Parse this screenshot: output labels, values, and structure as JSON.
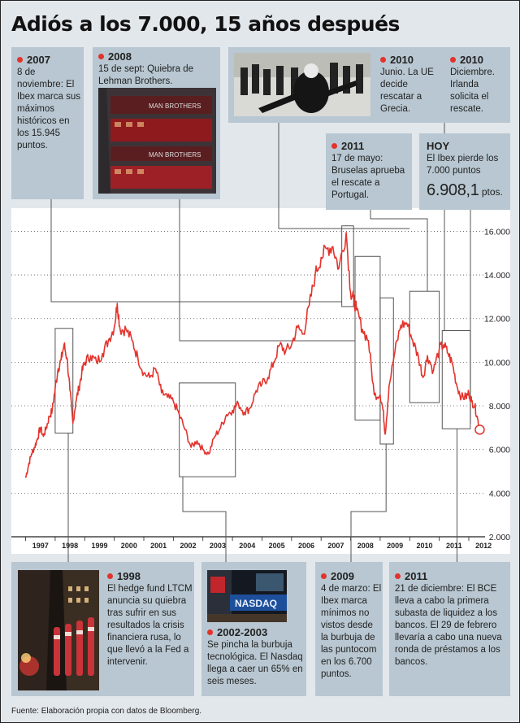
{
  "title": "Adiós a los 7.000, 15 años después",
  "source": "Fuente: Elaboración propia con datos de Bloomberg.",
  "events": {
    "e2007": {
      "year": "2007",
      "text": "8 de noviembre: El Ibex marca sus máximos históricos en los 15.945 puntos."
    },
    "e2008": {
      "year": "2008",
      "text": "15 de sept: Quiebra de Lehman Brothers."
    },
    "e2010a": {
      "year": "2010",
      "text": "Junio. La UE decide rescatar a Grecia."
    },
    "e2010b": {
      "year": "2010",
      "text": "Diciembre. Irlanda solicita el rescate."
    },
    "e2011a": {
      "year": "2011",
      "text": "17 de mayo: Bruselas aprueba el rescate a Portugal."
    },
    "hoy": {
      "year": "HOY",
      "text": "El Ibex pierde los 7.000 puntos",
      "value": "6.908,1",
      "unit": "ptos."
    },
    "e1998": {
      "year": "1998",
      "text": "El hedge fund LTCM anuncia su quiebra tras sufrir en sus resultados la crisis financiera rusa, lo que llevó a la Fed a intervenir."
    },
    "e2002": {
      "year": "2002-2003",
      "text": "Se pincha la burbuja tecnológica. El Nasdaq llega a caer un 65% en seis meses."
    },
    "e2009": {
      "year": "2009",
      "text": "4 de marzo: El Ibex marca mínimos no vistos desde la burbuja de las puntocom en los 6.700 puntos."
    },
    "e2011b": {
      "year": "2011",
      "text": "21 de diciembre: El BCE lleva a cabo la primera subasta de liquidez a los bancos. El 29 de febrero llevaría a cabo una nueva ronda de préstamos a los bancos."
    }
  },
  "photo_text": {
    "lehman": "MAN BROTHERS",
    "nasdaq": "NASDAQ"
  },
  "colors": {
    "line": "#e3332c",
    "panel": "#b8c7d1",
    "background": "#e2e7ec",
    "connector": "#555555"
  },
  "chart_data": {
    "type": "line",
    "series": [
      {
        "x": [
          1997.0,
          1997.1,
          1997.2,
          1997.3,
          1997.4,
          1997.5,
          1997.6,
          1997.7,
          1997.8,
          1997.9,
          1998.0,
          1998.1,
          1998.2,
          1998.3,
          1998.4,
          1998.5,
          1998.6,
          1998.7,
          1998.8,
          1998.9,
          1999.0,
          1999.2,
          1999.4,
          1999.6,
          1999.8,
          2000.0,
          2000.1,
          2000.2,
          2000.4,
          2000.6,
          2000.8,
          2001.0,
          2001.2,
          2001.4,
          2001.6,
          2001.8,
          2002.0,
          2002.2,
          2002.4,
          2002.6,
          2002.8,
          2003.0,
          2003.2,
          2003.4,
          2003.6,
          2003.8,
          2004.0,
          2004.2,
          2004.4,
          2004.6,
          2004.8,
          2005.0,
          2005.2,
          2005.4,
          2005.6,
          2005.8,
          2006.0,
          2006.2,
          2006.4,
          2006.6,
          2006.8,
          2007.0,
          2007.2,
          2007.4,
          2007.6,
          2007.85,
          2008.0,
          2008.1,
          2008.2,
          2008.4,
          2008.6,
          2008.8,
          2009.0,
          2009.1,
          2009.17,
          2009.3,
          2009.5,
          2009.7,
          2009.9,
          2010.1,
          2010.3,
          2010.45,
          2010.6,
          2010.8,
          2011.0,
          2011.15,
          2011.3,
          2011.45,
          2011.6,
          2011.75,
          2011.9,
          2012.0,
          2012.1,
          2012.2,
          2012.3,
          2012.37
        ],
        "y": [
          4700,
          5300,
          5800,
          6100,
          6500,
          7000,
          6600,
          7000,
          7500,
          7800,
          8800,
          9700,
          10100,
          10800,
          10200,
          8700,
          7200,
          8200,
          8800,
          9500,
          10000,
          10300,
          10000,
          10400,
          11000,
          11600,
          12700,
          11500,
          11500,
          11000,
          10200,
          9500,
          9300,
          9700,
          8600,
          8400,
          8200,
          7600,
          6900,
          6100,
          6400,
          6000,
          5800,
          6600,
          7000,
          7600,
          7800,
          8100,
          7700,
          7900,
          8700,
          9000,
          9300,
          10000,
          10800,
          10500,
          10800,
          11600,
          11300,
          12600,
          14000,
          14800,
          15200,
          15300,
          14300,
          15945,
          13200,
          12900,
          12400,
          11500,
          11000,
          8500,
          8500,
          7800,
          6700,
          8900,
          10500,
          11700,
          11800,
          11000,
          10200,
          9300,
          10300,
          9600,
          10600,
          10800,
          10400,
          9900,
          8900,
          8400,
          8400,
          8600,
          8200,
          8000,
          7400,
          6908.1
        ]
      }
    ],
    "xticks": [
      "1997",
      "1998",
      "1999",
      "2000",
      "2001",
      "2002",
      "2003",
      "2004",
      "2005",
      "2006",
      "2007",
      "2008",
      "2009",
      "2010",
      "2011",
      "2012"
    ],
    "yticks": [
      "2.000",
      "4.000",
      "6.000",
      "8.000",
      "10.000",
      "12.000",
      "14.000",
      "16.000"
    ],
    "ylim": [
      2000,
      16500
    ],
    "xlim": [
      1996.6,
      2012.55
    ],
    "grid": "horizontal dotted",
    "annotation_point": {
      "x": 2012.37,
      "y": 6908.1
    }
  }
}
